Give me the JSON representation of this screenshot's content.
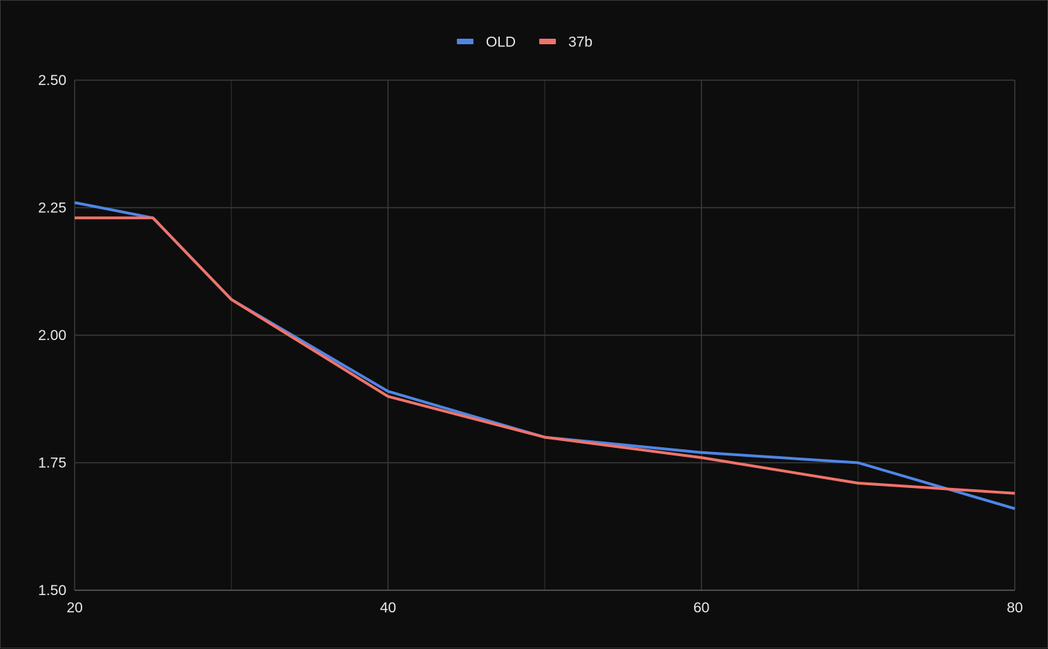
{
  "chart_data": {
    "type": "line",
    "title": "",
    "xlabel": "",
    "ylabel": "",
    "xlim": [
      20,
      80
    ],
    "ylim": [
      1.5,
      2.5
    ],
    "x_ticks": [
      "20",
      "40",
      "60",
      "80"
    ],
    "y_ticks": [
      "1.50",
      "1.75",
      "2.00",
      "2.25",
      "2.50"
    ],
    "grid": true,
    "legend_position": "top-center",
    "x": [
      20,
      25,
      30,
      40,
      50,
      60,
      70,
      80
    ],
    "series": [
      {
        "name": "OLD",
        "color": "#4f86e6",
        "values": [
          2.26,
          2.23,
          2.07,
          1.89,
          1.8,
          1.77,
          1.75,
          1.66
        ]
      },
      {
        "name": "37b",
        "color": "#f0736a",
        "values": [
          2.23,
          2.23,
          2.07,
          1.88,
          1.8,
          1.76,
          1.71,
          1.69
        ]
      }
    ]
  }
}
